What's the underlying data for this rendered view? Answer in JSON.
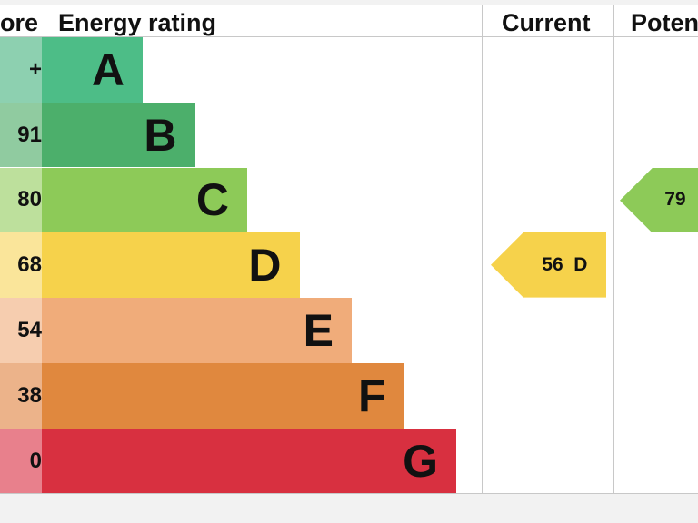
{
  "header": {
    "score_label": "ore",
    "rating_label": "Energy rating",
    "current_label": "Current",
    "potential_label": "Poten"
  },
  "chart_data": {
    "type": "bar",
    "bands": [
      {
        "letter": "A",
        "score_text": "+",
        "color": "#4dbd87",
        "score_color": "#8dd0b0"
      },
      {
        "letter": "B",
        "score_text": "91",
        "color": "#4caf6b",
        "score_color": "#90cba0"
      },
      {
        "letter": "C",
        "score_text": "80",
        "color": "#8dca58",
        "score_color": "#bde09c"
      },
      {
        "letter": "D",
        "score_text": "68",
        "color": "#f6d24b",
        "score_color": "#fae59a"
      },
      {
        "letter": "E",
        "score_text": "54",
        "color": "#f0ac7a",
        "score_color": "#f6cdaf"
      },
      {
        "letter": "F",
        "score_text": "38",
        "color": "#e0883e",
        "score_color": "#ecb38a"
      },
      {
        "letter": "G",
        "score_text": "0",
        "color": "#d83040",
        "score_color": "#e8808c"
      }
    ],
    "current": {
      "value": 56,
      "band": "D",
      "label": "56  D",
      "color": "#f6d24b"
    },
    "potential": {
      "value": 79,
      "band": "C",
      "label": "79",
      "color": "#8dca58"
    }
  }
}
